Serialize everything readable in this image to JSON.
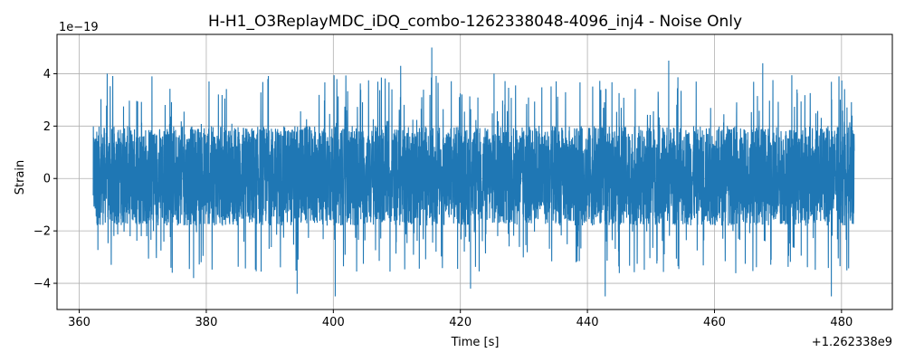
{
  "chart_data": {
    "type": "line",
    "title": "H-H1_O3ReplayMDC_iDQ_combo-1262338048-4096_inj4 - Noise Only",
    "xlabel": "Time [s]",
    "ylabel": "Strain",
    "x_offset_label": "+1.262338e9",
    "y_scale_label": "1e−19",
    "xlim": [
      356.5,
      488
    ],
    "ylim": [
      -5.0,
      5.5
    ],
    "x_ticks": [
      360,
      380,
      400,
      420,
      440,
      460,
      480
    ],
    "x_tick_labels": [
      "360",
      "380",
      "400",
      "420",
      "440",
      "460",
      "480"
    ],
    "y_ticks": [
      -4,
      -2,
      0,
      2,
      4
    ],
    "y_tick_labels": [
      "−4",
      "−2",
      "0",
      "2",
      "4"
    ],
    "grid": true,
    "series": [
      {
        "color": "#1f77b4",
        "x_range": [
          362.2,
          482.0
        ],
        "typical_envelope": [
          -1.8,
          2.0
        ],
        "peak_range": [
          -4.5,
          5.0
        ],
        "notable_peaks": [
          {
            "x": 364.4,
            "y": 4.0
          },
          {
            "x": 378.0,
            "y": -3.8
          },
          {
            "x": 389.7,
            "y": 3.8
          },
          {
            "x": 394.3,
            "y": -4.4
          },
          {
            "x": 400.3,
            "y": -4.5
          },
          {
            "x": 410.6,
            "y": 4.3
          },
          {
            "x": 415.5,
            "y": 5.0
          },
          {
            "x": 421.6,
            "y": -4.2
          },
          {
            "x": 425.3,
            "y": 4.0
          },
          {
            "x": 442.8,
            "y": -4.5
          },
          {
            "x": 452.8,
            "y": 4.5
          },
          {
            "x": 467.6,
            "y": 4.4
          },
          {
            "x": 478.4,
            "y": -4.5
          },
          {
            "x": 479.6,
            "y": 3.9
          }
        ]
      }
    ]
  }
}
